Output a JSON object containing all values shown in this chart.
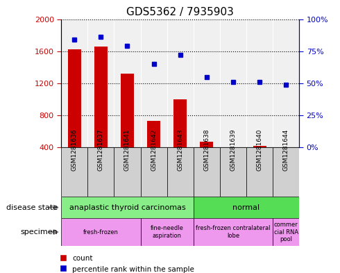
{
  "title": "GDS5362 / 7935903",
  "samples": [
    "GSM1281636",
    "GSM1281637",
    "GSM1281641",
    "GSM1281642",
    "GSM1281643",
    "GSM1281638",
    "GSM1281639",
    "GSM1281640",
    "GSM1281644"
  ],
  "counts": [
    1620,
    1660,
    1320,
    730,
    1000,
    470,
    400,
    420,
    400
  ],
  "percentiles": [
    84,
    86,
    79,
    65,
    72,
    55,
    51,
    51,
    49
  ],
  "ylim_left": [
    400,
    2000
  ],
  "ylim_right": [
    0,
    100
  ],
  "yticks_left": [
    400,
    800,
    1200,
    1600,
    2000
  ],
  "yticks_right": [
    0,
    25,
    50,
    75,
    100
  ],
  "bar_color": "#cc0000",
  "dot_color": "#0000cc",
  "disease_state": [
    {
      "label": "anaplastic thyroid carcinomas",
      "start": 0,
      "end": 5,
      "color": "#88ee88"
    },
    {
      "label": "normal",
      "start": 5,
      "end": 9,
      "color": "#55dd55"
    }
  ],
  "specimen": [
    {
      "label": "fresh-frozen",
      "start": 0,
      "end": 3,
      "color": "#ee99ee"
    },
    {
      "label": "fine-needle\naspiration",
      "start": 3,
      "end": 5,
      "color": "#ee99ee"
    },
    {
      "label": "fresh-frozen contralateral\nlobe",
      "start": 5,
      "end": 8,
      "color": "#ee99ee"
    },
    {
      "label": "commer\ncial RNA\npool",
      "start": 8,
      "end": 9,
      "color": "#ee99ee"
    }
  ],
  "plot_bg": "#f0f0f0",
  "label_bg": "#d0d0d0",
  "left_label_color": "#cc0000",
  "right_label_color": "#0000cc"
}
